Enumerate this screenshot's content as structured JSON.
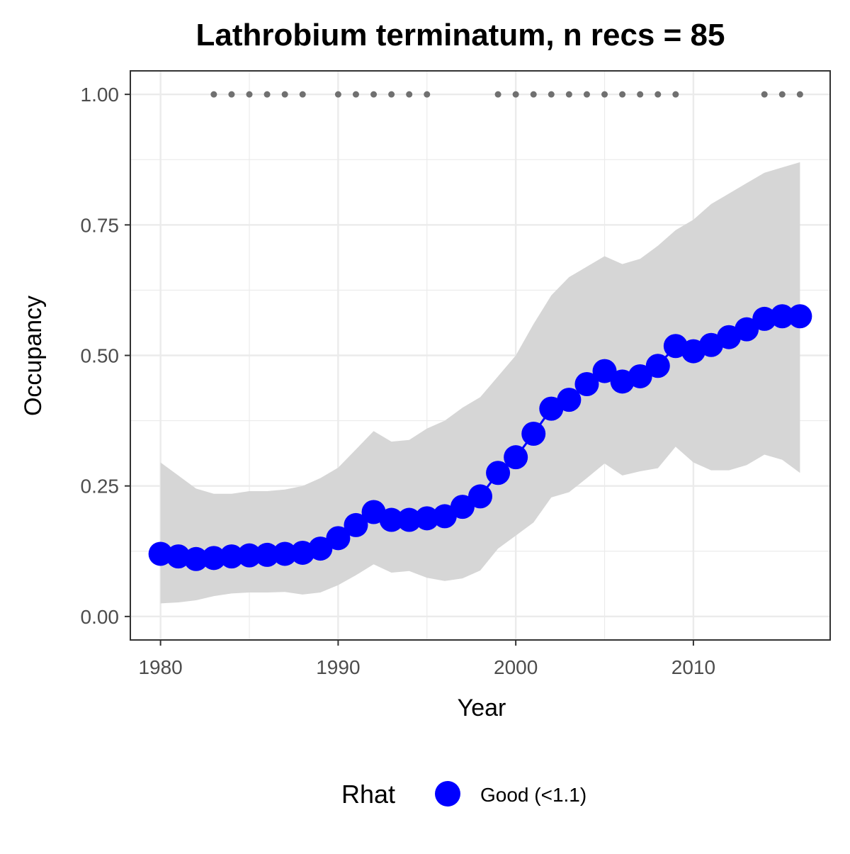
{
  "chart_data": {
    "type": "line",
    "title": "Lathrobium terminatum, n recs = 85",
    "xlabel": "Year",
    "ylabel": "Occupancy",
    "xlim": [
      1978.3,
      2017.7
    ],
    "ylim": [
      -0.045,
      1.045
    ],
    "x_ticks": [
      1980,
      1990,
      2000,
      2010
    ],
    "x_tick_labels": [
      "1980",
      "1990",
      "2000",
      "2010"
    ],
    "y_ticks": [
      0,
      0.25,
      0.5,
      0.75,
      1.0
    ],
    "y_tick_labels": [
      "0.00",
      "0.25",
      "0.50",
      "0.75",
      "1.00"
    ],
    "grid": true,
    "x": [
      1980,
      1981,
      1982,
      1983,
      1984,
      1985,
      1986,
      1987,
      1988,
      1989,
      1990,
      1991,
      1992,
      1993,
      1994,
      1995,
      1996,
      1997,
      1998,
      1999,
      2000,
      2001,
      2002,
      2003,
      2004,
      2005,
      2006,
      2007,
      2008,
      2009,
      2010,
      2011,
      2012,
      2013,
      2014,
      2015,
      2016
    ],
    "series": [
      {
        "name": "Occupancy",
        "values": [
          0.12,
          0.115,
          0.11,
          0.112,
          0.115,
          0.117,
          0.118,
          0.12,
          0.122,
          0.13,
          0.15,
          0.175,
          0.2,
          0.185,
          0.185,
          0.188,
          0.192,
          0.21,
          0.23,
          0.275,
          0.305,
          0.35,
          0.398,
          0.415,
          0.445,
          0.47,
          0.45,
          0.46,
          0.48,
          0.518,
          0.508,
          0.52,
          0.535,
          0.55,
          0.57,
          0.575,
          0.575
        ],
        "lower": [
          0.025,
          0.027,
          0.031,
          0.039,
          0.044,
          0.046,
          0.046,
          0.047,
          0.042,
          0.046,
          0.06,
          0.079,
          0.1,
          0.084,
          0.087,
          0.074,
          0.068,
          0.073,
          0.088,
          0.13,
          0.155,
          0.18,
          0.228,
          0.238,
          0.265,
          0.293,
          0.27,
          0.278,
          0.284,
          0.325,
          0.295,
          0.28,
          0.28,
          0.29,
          0.31,
          0.3,
          0.275
        ],
        "upper": [
          0.295,
          0.27,
          0.245,
          0.235,
          0.235,
          0.24,
          0.24,
          0.243,
          0.25,
          0.265,
          0.285,
          0.32,
          0.355,
          0.335,
          0.338,
          0.36,
          0.375,
          0.4,
          0.42,
          0.46,
          0.5,
          0.56,
          0.615,
          0.65,
          0.67,
          0.69,
          0.675,
          0.685,
          0.71,
          0.74,
          0.76,
          0.79,
          0.81,
          0.83,
          0.85,
          0.86,
          0.87
        ]
      }
    ],
    "record_years": [
      1983,
      1984,
      1985,
      1986,
      1987,
      1988,
      1990,
      1991,
      1992,
      1993,
      1994,
      1995,
      1999,
      2000,
      2001,
      2002,
      2003,
      2004,
      2005,
      2006,
      2007,
      2008,
      2009,
      2014,
      2015,
      2016
    ],
    "record_y": 1.0,
    "legend": {
      "title": "Rhat",
      "entries": [
        "Good (<1.1)"
      ],
      "position": "bottom"
    },
    "colors": {
      "points": "#0000ff",
      "ribbon": "#d6d6d6",
      "records": "#707070",
      "grid": "#ebebeb",
      "panel_border": "#333333"
    }
  }
}
